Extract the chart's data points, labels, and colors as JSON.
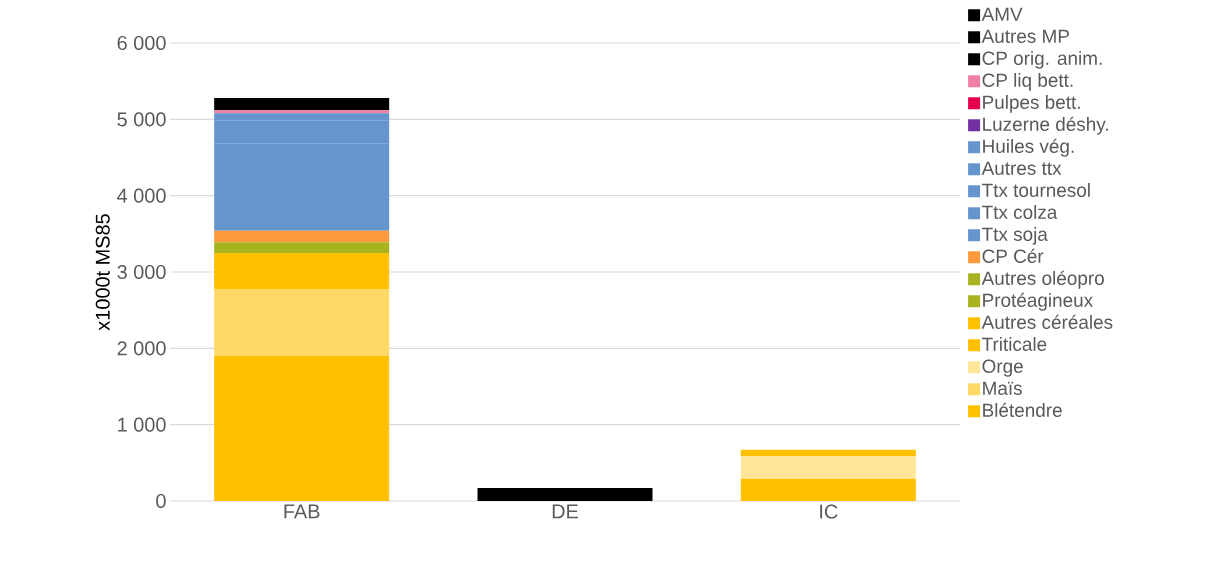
{
  "chart_data": {
    "type": "bar",
    "stacked": true,
    "ylabel": "x1000t MS85",
    "categories": [
      "FAB",
      "DE",
      "IC"
    ],
    "ylim": [
      0,
      6000
    ],
    "yticks": [
      {
        "value": 0,
        "label": "0"
      },
      {
        "value": 1000,
        "label": "1 000"
      },
      {
        "value": 2000,
        "label": "2 000"
      },
      {
        "value": 3000,
        "label": "3 000"
      },
      {
        "value": 4000,
        "label": "4 000"
      },
      {
        "value": 5000,
        "label": "5 000"
      },
      {
        "value": 6000,
        "label": "6 000"
      }
    ],
    "grid": "y",
    "legend": "right",
    "series": [
      {
        "name": "Blétendre",
        "color": "#ffc000",
        "values": [
          1900,
          0,
          290
        ]
      },
      {
        "name": "Maïs",
        "color": "#ffd966",
        "values": [
          870,
          0,
          0
        ]
      },
      {
        "name": "Orge",
        "color": "#ffe699",
        "values": [
          0,
          0,
          300
        ]
      },
      {
        "name": "Triticale",
        "color": "#ffc000",
        "values": [
          480,
          0,
          0
        ]
      },
      {
        "name": "Autres céréales",
        "color": "#ffc000",
        "values": [
          0,
          0,
          80
        ]
      },
      {
        "name": "Protéagineux",
        "color": "#a9b31f",
        "values": [
          0,
          0,
          0
        ]
      },
      {
        "name": "Autres oléopro",
        "color": "#a9b31f",
        "values": [
          140,
          0,
          0
        ]
      },
      {
        "name": "CP Cér",
        "color": "#ff9a3c",
        "values": [
          150,
          0,
          0
        ]
      },
      {
        "name": "Ttx soja",
        "color": "#6695cd",
        "values": [
          1140,
          0,
          0
        ]
      },
      {
        "name": "Ttx colza",
        "color": "#6695cd",
        "values": [
          0,
          0,
          0
        ]
      },
      {
        "name": "Ttx tournesol",
        "color": "#6695cd",
        "values": [
          300,
          0,
          0
        ]
      },
      {
        "name": "Autres ttx",
        "color": "#6695cd",
        "values": [
          0,
          0,
          0
        ]
      },
      {
        "name": "Huiles vég.",
        "color": "#6695cd",
        "values": [
          100,
          0,
          0
        ]
      },
      {
        "name": "Luzerne déshy.",
        "color": "#7030a0",
        "values": [
          0,
          0,
          0
        ]
      },
      {
        "name": "Pulpes bett.",
        "color": "#e5004f",
        "values": [
          0,
          0,
          0
        ]
      },
      {
        "name": "CP liq bett.",
        "color": "#f07fa7",
        "values": [
          40,
          0,
          0
        ]
      },
      {
        "name": "CP orig. anim.",
        "color": "#000000",
        "values": [
          0,
          0,
          0
        ]
      },
      {
        "name": "Autres MP",
        "color": "#000000",
        "values": [
          0,
          170,
          0
        ]
      },
      {
        "name": "AMV",
        "color": "#000000",
        "values": [
          160,
          0,
          0
        ]
      }
    ]
  }
}
